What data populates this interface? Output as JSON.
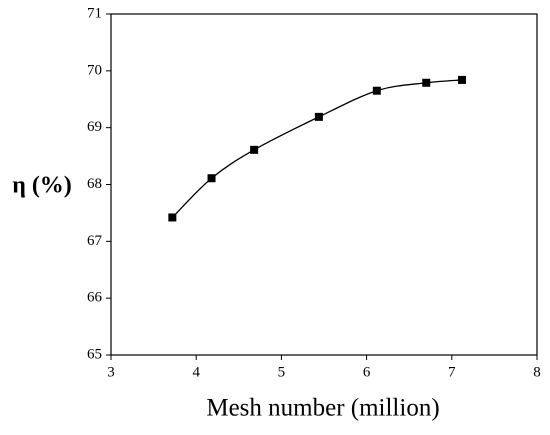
{
  "chart_data": {
    "type": "line",
    "x_label": "Mesh number (million)",
    "y_label": "η (%)",
    "x": [
      3.72,
      4.18,
      4.68,
      5.44,
      6.12,
      6.7,
      7.12
    ],
    "series": [
      {
        "color": "#000000",
        "values": [
          67.42,
          68.11,
          68.61,
          69.19,
          69.65,
          69.79,
          69.84
        ]
      }
    ],
    "xlim": [
      3,
      8
    ],
    "xticks": [
      3,
      4,
      5,
      6,
      7,
      8
    ],
    "ylim": [
      65,
      71
    ],
    "yticks": [
      65,
      66,
      67,
      68,
      69,
      70,
      71
    ],
    "smooth": true,
    "marker": "square"
  }
}
